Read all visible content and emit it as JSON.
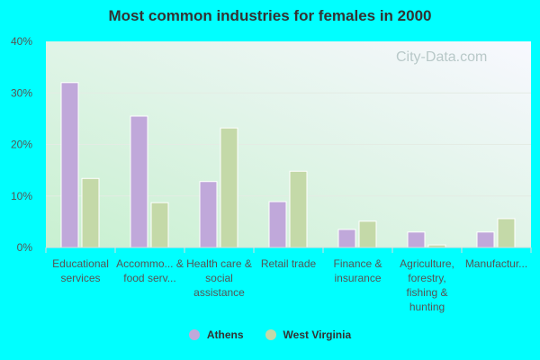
{
  "chart_data": {
    "type": "bar",
    "title": "Most common industries for females in 2000",
    "categories": [
      "Educational services",
      "Accommo... & food serv...",
      "Health care & social assistance",
      "Retail trade",
      "Finance & insurance",
      "Agriculture, forestry, fishing & hunting",
      "Manufactur..."
    ],
    "series": [
      {
        "name": "Athens",
        "color": "#c0a8da",
        "values": [
          32.0,
          25.5,
          12.8,
          8.9,
          3.5,
          3.0,
          3.0
        ]
      },
      {
        "name": "West Virginia",
        "color": "#c4d9a8",
        "values": [
          13.4,
          8.7,
          23.2,
          14.8,
          5.1,
          0.5,
          5.6
        ]
      }
    ],
    "ylim": [
      0,
      40
    ],
    "yticks": [
      "0%",
      "10%",
      "20%",
      "30%",
      "40%"
    ],
    "grid": true,
    "legend": "bottom",
    "watermark": "City-Data.com"
  }
}
